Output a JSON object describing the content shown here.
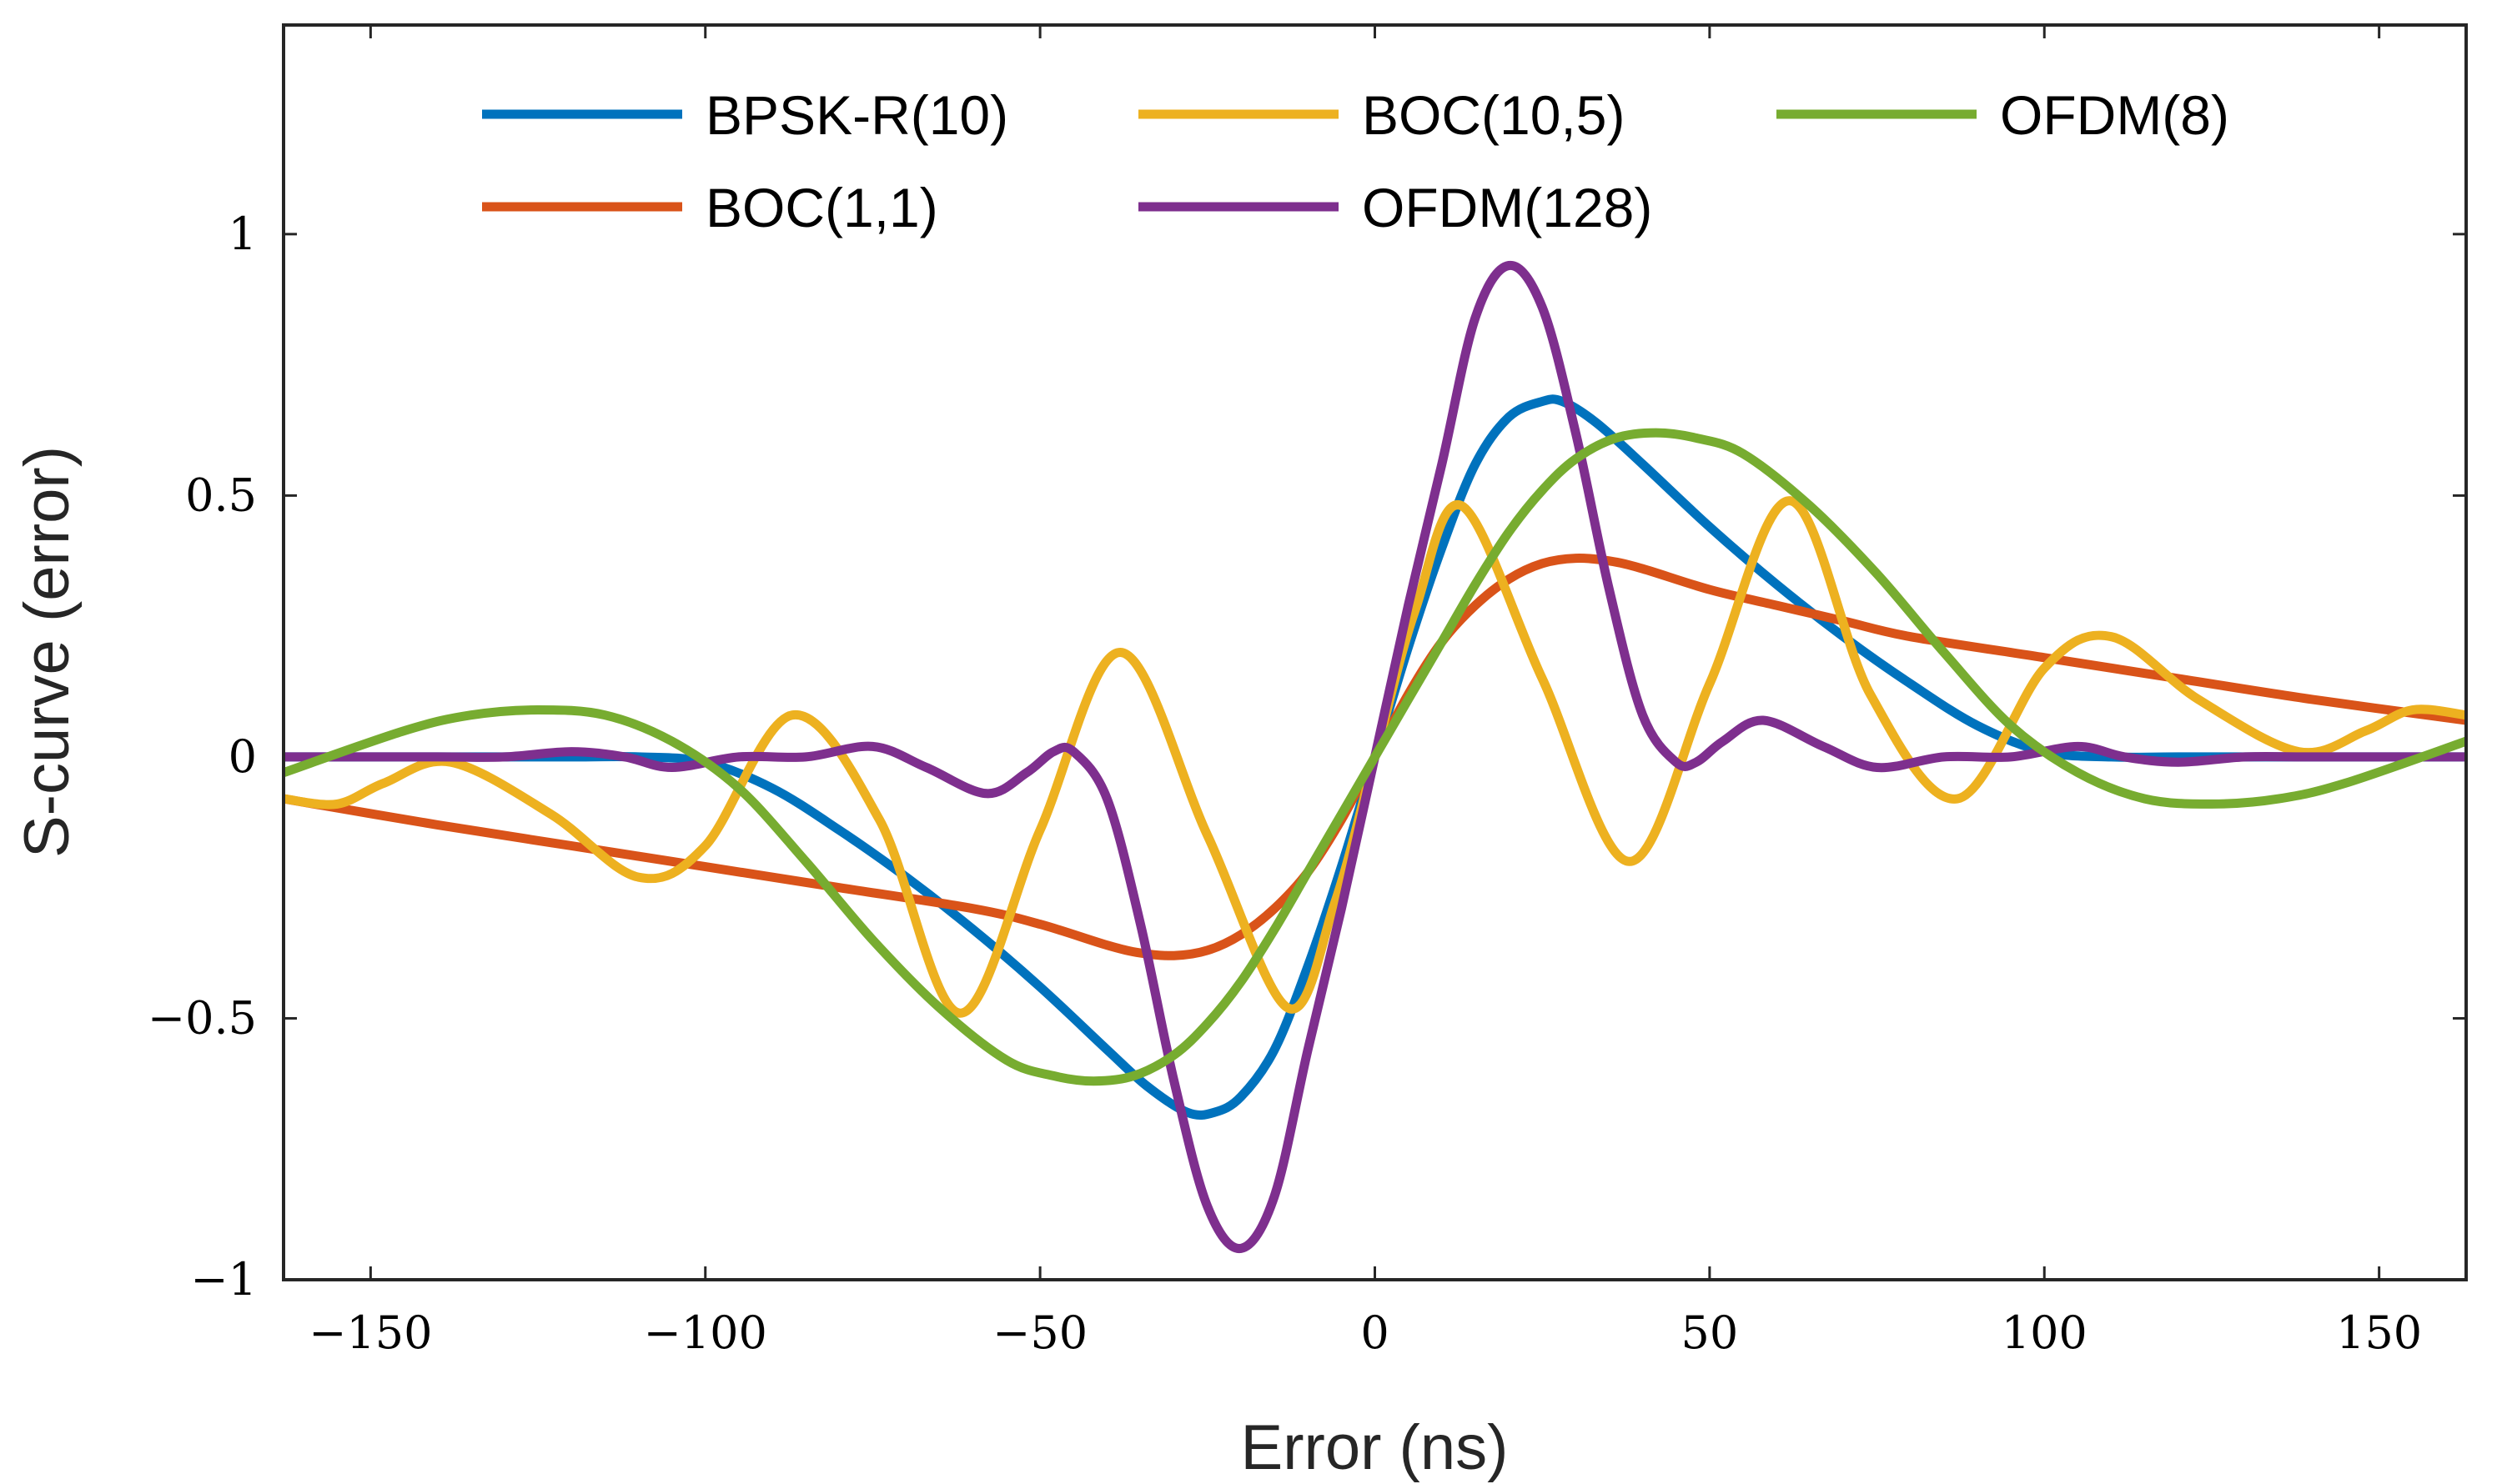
{
  "chart_data": {
    "type": "line",
    "title": "",
    "xlabel": "Error (ns)",
    "ylabel": "S-curve (error)",
    "xlim": [
      -163,
      163
    ],
    "ylim": [
      -1,
      1.4
    ],
    "xticks": [
      -150,
      -100,
      -50,
      0,
      50,
      100,
      150
    ],
    "xtick_labels": [
      "−150",
      "−100",
      "−50",
      "0",
      "50",
      "100",
      "150"
    ],
    "yticks": [
      -1,
      -0.5,
      0,
      0.5,
      1
    ],
    "ytick_labels": [
      "−1",
      "−0.5",
      "0",
      "0.5",
      "1"
    ],
    "legend_position": "top",
    "series": [
      {
        "name": "BPSK-R(10)",
        "color": "#0072BD",
        "x": [
          -163,
          -140,
          -120,
          -110,
          -100,
          -90,
          -80,
          -70,
          -60,
          -50,
          -40,
          -34,
          -28,
          -24,
          -20,
          -15,
          -10,
          -5,
          0,
          5,
          10,
          15,
          20,
          25,
          28,
          33,
          40,
          50,
          60,
          70,
          80,
          90,
          100,
          110,
          120,
          140,
          163
        ],
        "y": [
          0,
          0,
          0,
          0,
          -0.01,
          -0.06,
          -0.14,
          -0.23,
          -0.33,
          -0.44,
          -0.56,
          -0.63,
          -0.68,
          -0.68,
          -0.65,
          -0.56,
          -0.4,
          -0.21,
          0,
          0.21,
          0.4,
          0.56,
          0.65,
          0.68,
          0.68,
          0.64,
          0.56,
          0.44,
          0.33,
          0.23,
          0.14,
          0.06,
          0.01,
          0,
          0,
          0,
          0
        ]
      },
      {
        "name": "BOC(1,1)",
        "color": "#D95319",
        "x": [
          -163,
          -140,
          -120,
          -100,
          -80,
          -60,
          -50,
          -40,
          -35,
          -30,
          -25,
          -20,
          -15,
          -10,
          -5,
          0,
          5,
          10,
          15,
          20,
          25,
          30,
          35,
          40,
          50,
          60,
          70,
          80,
          100,
          120,
          140,
          163
        ],
        "y": [
          -0.08,
          -0.13,
          -0.17,
          -0.21,
          -0.25,
          -0.29,
          -0.32,
          -0.36,
          -0.375,
          -0.38,
          -0.37,
          -0.34,
          -0.29,
          -0.22,
          -0.12,
          0,
          0.12,
          0.22,
          0.29,
          0.34,
          0.37,
          0.38,
          0.375,
          0.36,
          0.32,
          0.29,
          0.26,
          0.23,
          0.19,
          0.15,
          0.11,
          0.07
        ]
      },
      {
        "name": "BOC(10,5)",
        "color": "#EDB120",
        "x": [
          -163,
          -155,
          -148,
          -138,
          -123,
          -110,
          -100,
          -87,
          -74,
          -62,
          -50,
          -38,
          -25,
          -13,
          -6,
          0,
          6,
          13,
          25,
          38,
          50,
          62,
          74,
          87,
          100,
          110,
          123,
          138,
          148,
          155,
          163
        ],
        "y": [
          -0.08,
          -0.09,
          -0.05,
          -0.01,
          -0.11,
          -0.23,
          -0.17,
          0.08,
          -0.12,
          -0.49,
          -0.14,
          0.2,
          -0.15,
          -0.48,
          -0.28,
          0,
          0.28,
          0.48,
          0.15,
          -0.2,
          0.14,
          0.49,
          0.12,
          -0.08,
          0.17,
          0.23,
          0.11,
          0.01,
          0.05,
          0.09,
          0.08
        ]
      },
      {
        "name": "OFDM(128)",
        "color": "#7E2F8E",
        "x": [
          -163,
          -140,
          -130,
          -120,
          -112,
          -105,
          -95,
          -85,
          -75,
          -67,
          -58,
          -52,
          -48,
          -45,
          -40,
          -35,
          -30,
          -25,
          -20,
          -15,
          -10,
          -5,
          0,
          5,
          10,
          15,
          20,
          25,
          30,
          35,
          40,
          45,
          48,
          52,
          58,
          67,
          75,
          85,
          95,
          105,
          112,
          120,
          130,
          140,
          163
        ],
        "y": [
          0,
          0,
          0,
          0.01,
          0,
          -0.02,
          0,
          0,
          0.02,
          -0.02,
          -0.07,
          -0.03,
          0.01,
          0.01,
          -0.08,
          -0.32,
          -0.62,
          -0.86,
          -0.94,
          -0.84,
          -0.56,
          -0.29,
          0,
          0.29,
          0.56,
          0.84,
          0.94,
          0.86,
          0.62,
          0.32,
          0.08,
          -0.01,
          -0.01,
          0.03,
          0.07,
          0.02,
          -0.02,
          0,
          0,
          0.02,
          0,
          -0.01,
          0,
          0,
          0
        ]
      },
      {
        "name": "OFDM(8)",
        "color": "#77AC30",
        "x": [
          -163,
          -145,
          -135,
          -125,
          -115,
          -105,
          -95,
          -85,
          -75,
          -65,
          -55,
          -48,
          -42,
          -36,
          -30,
          -25,
          -20,
          -15,
          -10,
          -5,
          0,
          5,
          10,
          15,
          20,
          25,
          30,
          36,
          42,
          48,
          55,
          65,
          75,
          85,
          95,
          105,
          115,
          125,
          135,
          145,
          163
        ],
        "y": [
          -0.03,
          0.05,
          0.08,
          0.09,
          0.08,
          0.03,
          -0.06,
          -0.2,
          -0.35,
          -0.48,
          -0.58,
          -0.61,
          -0.62,
          -0.61,
          -0.57,
          -0.51,
          -0.43,
          -0.33,
          -0.22,
          -0.11,
          0,
          0.11,
          0.22,
          0.33,
          0.43,
          0.51,
          0.57,
          0.61,
          0.62,
          0.61,
          0.58,
          0.48,
          0.35,
          0.2,
          0.06,
          -0.03,
          -0.08,
          -0.09,
          -0.08,
          -0.05,
          0.03
        ]
      }
    ],
    "legend_order": [
      0,
      2,
      4,
      1,
      3
    ]
  }
}
